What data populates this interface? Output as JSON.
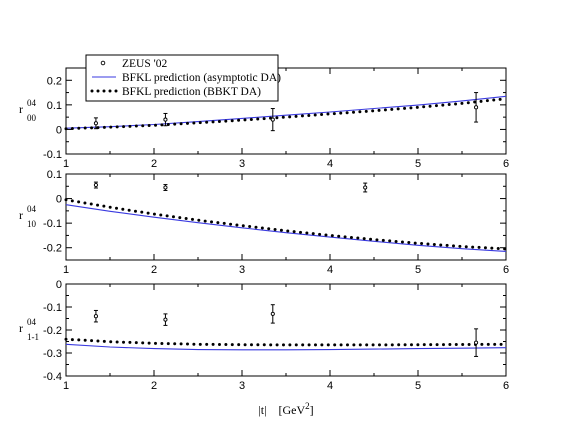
{
  "chart_data": {
    "type": "scatter",
    "xlabel": "|t|    [GeV",
    "xlabel_sup": "2",
    "xlabel_close": "]",
    "xlim": [
      1,
      6
    ],
    "x_ticks": [
      "1",
      "2",
      "3",
      "4",
      "5",
      "6"
    ],
    "legend": {
      "placement": "top-left",
      "entries": [
        "ZEUS '02",
        "BFKL prediction (asymptotic DA)",
        "BFKL prediction (BBKT DA)"
      ]
    },
    "colors": {
      "asymptotic": "#3a3ae0",
      "bbkt": "#000000",
      "data": "#000000"
    },
    "panels": [
      {
        "ylabel_sup": "04",
        "ylabel_sub": "00",
        "ylim": [
          -0.1,
          0.25
        ],
        "y_ticks": [
          {
            "v": -0.1,
            "t": "-0.1"
          },
          {
            "v": 0,
            "t": "0"
          },
          {
            "v": 0.1,
            "t": "0.1"
          },
          {
            "v": 0.2,
            "t": "0.2"
          }
        ],
        "data_points": [
          {
            "x": 1.34,
            "y": 0.025,
            "err": 0.022
          },
          {
            "x": 2.13,
            "y": 0.04,
            "err": 0.025
          },
          {
            "x": 3.35,
            "y": 0.04,
            "err": 0.045
          },
          {
            "x": 5.66,
            "y": 0.09,
            "err": 0.06
          }
        ],
        "series": [
          {
            "name": "BFKL prediction (asymptotic DA)",
            "style": "solid",
            "x": [
              1,
              1.5,
              2,
              2.5,
              3,
              3.5,
              4,
              4.5,
              5,
              5.5,
              6
            ],
            "y": [
              0.005,
              0.011,
              0.02,
              0.032,
              0.045,
              0.058,
              0.071,
              0.085,
              0.099,
              0.116,
              0.135
            ]
          },
          {
            "name": "BFKL prediction (BBKT DA)",
            "style": "dotted",
            "x": [
              1,
              1.5,
              2,
              2.5,
              3,
              3.5,
              4,
              4.5,
              5,
              5.5,
              6
            ],
            "y": [
              0.003,
              0.009,
              0.017,
              0.027,
              0.038,
              0.05,
              0.063,
              0.076,
              0.09,
              0.106,
              0.125
            ]
          }
        ]
      },
      {
        "ylabel_sup": "04",
        "ylabel_sub": "10",
        "ylim": [
          -0.25,
          0.1
        ],
        "y_ticks": [
          {
            "v": -0.2,
            "t": "-0.2"
          },
          {
            "v": -0.1,
            "t": "-0.1"
          },
          {
            "v": 0,
            "t": "0"
          },
          {
            "v": 0.1,
            "t": "0.1"
          }
        ],
        "data_points": [
          {
            "x": 1.34,
            "y": 0.055,
            "err": 0.012
          },
          {
            "x": 2.13,
            "y": 0.045,
            "err": 0.012
          },
          {
            "x": 4.4,
            "y": 0.045,
            "err": 0.018
          }
        ],
        "series": [
          {
            "name": "BFKL prediction (asymptotic DA)",
            "style": "solid",
            "x": [
              1,
              1.5,
              2,
              2.5,
              3,
              3.5,
              4,
              4.5,
              5,
              5.5,
              6
            ],
            "y": [
              -0.025,
              -0.052,
              -0.076,
              -0.098,
              -0.119,
              -0.139,
              -0.157,
              -0.174,
              -0.19,
              -0.204,
              -0.215
            ]
          },
          {
            "name": "BFKL prediction (BBKT DA)",
            "style": "dotted",
            "x": [
              1,
              1.5,
              2,
              2.5,
              3,
              3.5,
              4,
              4.5,
              5,
              5.5,
              6
            ],
            "y": [
              -0.005,
              -0.035,
              -0.063,
              -0.088,
              -0.11,
              -0.131,
              -0.15,
              -0.167,
              -0.182,
              -0.195,
              -0.205
            ]
          }
        ]
      },
      {
        "ylabel_sup": "04",
        "ylabel_sub": "1-1",
        "ylim": [
          -0.4,
          0
        ],
        "y_ticks": [
          {
            "v": -0.4,
            "t": "-0.4"
          },
          {
            "v": -0.3,
            "t": "-0.3"
          },
          {
            "v": -0.2,
            "t": "-0.2"
          },
          {
            "v": -0.1,
            "t": "-0.1"
          },
          {
            "v": 0,
            "t": "0"
          }
        ],
        "data_points": [
          {
            "x": 1.34,
            "y": -0.14,
            "err": 0.025
          },
          {
            "x": 2.13,
            "y": -0.155,
            "err": 0.025
          },
          {
            "x": 3.35,
            "y": -0.13,
            "err": 0.04
          },
          {
            "x": 5.66,
            "y": -0.255,
            "err": 0.06
          }
        ],
        "series": [
          {
            "name": "BFKL prediction (asymptotic DA)",
            "style": "solid",
            "x": [
              1,
              1.5,
              2,
              2.5,
              3,
              3.5,
              4,
              4.5,
              5,
              5.5,
              6
            ],
            "y": [
              -0.262,
              -0.274,
              -0.281,
              -0.285,
              -0.286,
              -0.286,
              -0.285,
              -0.283,
              -0.281,
              -0.279,
              -0.277
            ]
          },
          {
            "name": "BFKL prediction (BBKT DA)",
            "style": "dotted",
            "x": [
              1,
              1.5,
              2,
              2.5,
              3,
              3.5,
              4,
              4.5,
              5,
              5.5,
              6
            ],
            "y": [
              -0.24,
              -0.251,
              -0.258,
              -0.262,
              -0.264,
              -0.265,
              -0.265,
              -0.265,
              -0.264,
              -0.263,
              -0.262
            ]
          }
        ]
      }
    ]
  }
}
